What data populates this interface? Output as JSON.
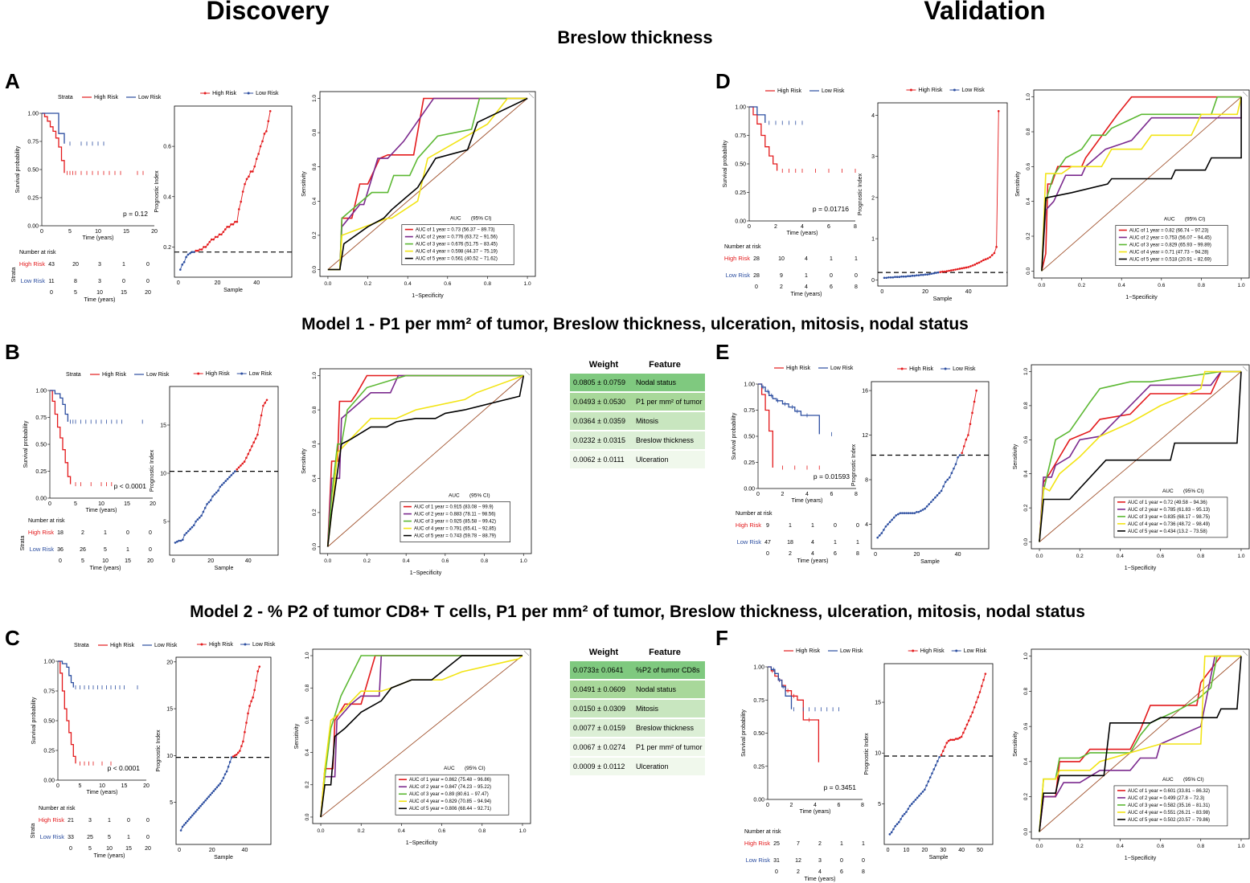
{
  "headers": {
    "discovery": "Discovery",
    "validation": "Validation"
  },
  "section_titles": {
    "breslow": "Breslow thickness",
    "model1": "Model 1 - P1 per mm² of tumor, Breslow thickness, ulceration, mitosis, nodal status",
    "model2": "Model 2 - % P2 of tumor CD8+ T cells, P1 per mm² of tumor, Breslow thickness, ulceration, mitosis, nodal status"
  },
  "panel_letters": [
    "A",
    "B",
    "C",
    "D",
    "E",
    "F"
  ],
  "colors": {
    "high_risk": "#e31a1c",
    "low_risk": "#2c4ea0",
    "y1": "#e31a1c",
    "y2": "#7b2a8e",
    "y3": "#5cb833",
    "y4": "#f2e414",
    "y5": "#000000",
    "diagonal": "#a0522d",
    "table_header": "#000000",
    "table_rows": [
      "#7fc97f",
      "#a8d89a",
      "#c8e6bf",
      "#dcefd6",
      "#f0f8ec"
    ]
  },
  "common": {
    "strata_label": "Strata",
    "high_risk": "High Risk",
    "low_risk": "Low Risk",
    "km_ylabel": "Survival probability",
    "km_xlabel": "Time (years)",
    "km_yticks": [
      "1.00",
      "0.75",
      "0.50",
      "0.25",
      "0.00"
    ],
    "risk_table_title": "Number at risk",
    "risk_table_ylabel": "Strata",
    "pi_ylabel": "Prognostic Index",
    "pi_xlabel": "Sample",
    "roc_ylabel": "Sensitivity",
    "roc_xlabel": "1−Specificity",
    "roc_ticks": [
      "0.0",
      "0.2",
      "0.4",
      "0.6",
      "0.8",
      "1.0"
    ],
    "auc_header": "AUC",
    "ci_header": "(95% CI)",
    "weight_header": "Weight",
    "feature_header": "Feature"
  },
  "chart_data": [
    {
      "panel": "A",
      "type": "line",
      "title": "Kaplan-Meier survival",
      "xticks": [
        "0",
        "5",
        "10",
        "15",
        "20"
      ],
      "pvalue": "p = 0.12",
      "risk_xticks": [
        "0",
        "5",
        "10",
        "15",
        "20"
      ],
      "risk_high": [
        "43",
        "20",
        "3",
        "1",
        "0"
      ],
      "risk_low": [
        "11",
        "8",
        "3",
        "0",
        "0"
      ],
      "roc_auc": [
        "AUC of 1 year = 0.73  (56.37 − 89.73)",
        "AUC of 2 year = 0.776  (63.72 − 91.56)",
        "AUC of 3 year = 0.676  (51.75 − 83.45)",
        "AUC of 4 year = 0.598  (44.37 − 75.19)",
        "AUC of 5 year = 0.561  (40.52 − 71.62)"
      ],
      "pi_yticks": [
        "0.2",
        "0.4",
        "0.6"
      ]
    },
    {
      "panel": "B",
      "type": "line",
      "title": "Kaplan-Meier survival",
      "xticks": [
        "0",
        "5",
        "10",
        "15",
        "20"
      ],
      "pvalue": "p < 0.0001",
      "risk_xticks": [
        "0",
        "5",
        "10",
        "15",
        "20"
      ],
      "risk_high": [
        "18",
        "2",
        "1",
        "0",
        "0"
      ],
      "risk_low": [
        "36",
        "26",
        "5",
        "1",
        "0"
      ],
      "roc_auc": [
        "AUC of 1 year = 0.915  (83.08 − 99.9)",
        "AUC of 2 year = 0.883  (78.11 − 98.56)",
        "AUC of 3 year = 0.925  (85.58 − 99.42)",
        "AUC of 4 year = 0.791  (65.41 − 92.85)",
        "AUC of 5 year = 0.743  (59.78 − 88.79)"
      ],
      "pi_yticks": [
        "5",
        "10",
        "15"
      ],
      "weights": [
        {
          "weight": "0.0805 ± 0.0759",
          "feature": "Nodal status"
        },
        {
          "weight": "0.0493 ± 0.0530",
          "feature": "P1 per mm² of tumor"
        },
        {
          "weight": "0.0364 ± 0.0359",
          "feature": "Mitosis"
        },
        {
          "weight": "0.0232 ± 0.0315",
          "feature": "Breslow thickness"
        },
        {
          "weight": "0.0062 ± 0.0111",
          "feature": "Ulceration"
        }
      ]
    },
    {
      "panel": "C",
      "type": "line",
      "title": "Kaplan-Meier survival",
      "xticks": [
        "0",
        "5",
        "10",
        "15",
        "20"
      ],
      "pvalue": "p < 0.0001",
      "risk_xticks": [
        "0",
        "5",
        "10",
        "15",
        "20"
      ],
      "risk_high": [
        "21",
        "3",
        "1",
        "0",
        "0"
      ],
      "risk_low": [
        "33",
        "25",
        "5",
        "1",
        "0"
      ],
      "roc_auc": [
        "AUC of 1 year = 0.862  (75.48 − 96.86)",
        "AUC of 2 year = 0.847  (74.23 − 95.22)",
        "AUC of 3 year = 0.89  (80.61 − 97.47)",
        "AUC of 4 year = 0.829  (70.85 − 94.94)",
        "AUC of 5 year = 0.806  (68.44 − 92.71)"
      ],
      "pi_yticks": [
        "5",
        "10",
        "15",
        "20"
      ],
      "weights": [
        {
          "weight": "0.0733± 0.0641",
          "feature": "%P2 of tumor CD8s"
        },
        {
          "weight": "0.0491 ± 0.0609",
          "feature": "Nodal status"
        },
        {
          "weight": "0.0150 ± 0.0309",
          "feature": "Mitosis"
        },
        {
          "weight": "0.0077 ± 0.0159",
          "feature": "Breslow thickness"
        },
        {
          "weight": "0.0067 ± 0.0274",
          "feature": "P1 per mm² of tumor"
        },
        {
          "weight": "0.0009 ± 0.0112",
          "feature": "Ulceration"
        }
      ]
    },
    {
      "panel": "D",
      "type": "line",
      "title": "Kaplan-Meier survival",
      "xticks": [
        "0",
        "2",
        "4",
        "6",
        "8"
      ],
      "pvalue": "p = 0.01716",
      "risk_xticks": [
        "0",
        "2",
        "4",
        "6",
        "8"
      ],
      "risk_high": [
        "28",
        "10",
        "4",
        "1",
        "1"
      ],
      "risk_low": [
        "28",
        "9",
        "1",
        "0",
        "0"
      ],
      "roc_auc": [
        "AUC of 1 year = 0.82  (66.74 − 97.23)",
        "AUC of 2 year = 0.753  (56.07 − 94.45)",
        "AUC of 3 year = 0.829  (65.93 − 99.89)",
        "AUC of 4 year = 0.71  (47.73 − 94.28)",
        "AUC of 5 year = 0.518  (20.91 − 82.69)"
      ],
      "pi_yticks": [
        "0",
        "1",
        "2",
        "3",
        "4"
      ]
    },
    {
      "panel": "E",
      "type": "line",
      "title": "Kaplan-Meier survival",
      "xticks": [
        "0",
        "2",
        "4",
        "6",
        "8"
      ],
      "pvalue": "p = 0.01593",
      "risk_xticks": [
        "0",
        "2",
        "4",
        "6",
        "8"
      ],
      "risk_high": [
        "9",
        "1",
        "1",
        "0",
        "0"
      ],
      "risk_low": [
        "47",
        "18",
        "4",
        "1",
        "1"
      ],
      "roc_auc": [
        "AUC of 1 year = 0.72  (49.58 − 94.36)",
        "AUC of 2 year = 0.785  (61.83 − 95.13)",
        "AUC of 3 year = 0.835  (68.17 − 98.75)",
        "AUC of 4 year = 0.736  (48.72 − 98.49)",
        "AUC of 5 year = 0.434  (13.2 − 73.58)"
      ],
      "pi_yticks": [
        "4",
        "8",
        "12",
        "16"
      ]
    },
    {
      "panel": "F",
      "type": "line",
      "title": "Kaplan-Meier survival",
      "xticks": [
        "0",
        "2",
        "4",
        "6",
        "8"
      ],
      "pvalue": "p = 0.3451",
      "risk_xticks": [
        "0",
        "2",
        "4",
        "6",
        "8"
      ],
      "risk_high": [
        "25",
        "7",
        "2",
        "1",
        "1"
      ],
      "risk_low": [
        "31",
        "12",
        "3",
        "0",
        "0"
      ],
      "roc_auc": [
        "AUC of 1 year = 0.601  (33.81 − 86.32)",
        "AUC of 2 year = 0.499  (27.8 − 72.3)",
        "AUC of 3 year = 0.582  (35.16 − 81.31)",
        "AUC of 4 year = 0.551  (26.21 − 83.98)",
        "AUC of 5 year = 0.502  (20.57 − 79.86)"
      ],
      "pi_yticks": [
        "5",
        "10",
        "15"
      ]
    }
  ]
}
